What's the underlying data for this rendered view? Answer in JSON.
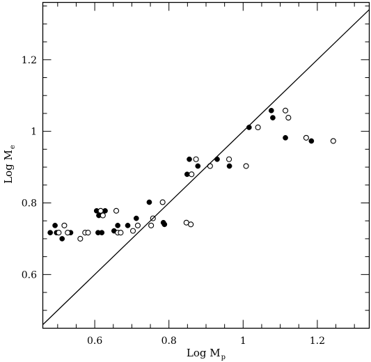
{
  "chart_data": {
    "type": "scatter",
    "title": "",
    "xlabel": "Log M",
    "xlabel_sub": "p",
    "ylabel": "Log M",
    "ylabel_sub": "e",
    "xlim": [
      0.46,
      1.34
    ],
    "ylim": [
      0.45,
      1.36
    ],
    "x_ticks": [
      0.6,
      0.8,
      1,
      1.2
    ],
    "x_tick_labels": [
      "0.6",
      "0.8",
      "1",
      "1.2"
    ],
    "y_ticks": [
      0.6,
      0.8,
      1,
      1.2
    ],
    "y_tick_labels": [
      "0.6",
      "0.8",
      "1",
      "1.2"
    ],
    "grid": false,
    "legend": "none",
    "reference_line": "y = x",
    "series": [
      {
        "marker": "filled-circle",
        "points": [
          [
            0.493,
            0.737
          ],
          [
            0.48,
            0.717
          ],
          [
            0.497,
            0.717
          ],
          [
            0.512,
            0.7
          ],
          [
            0.535,
            0.717
          ],
          [
            0.605,
            0.778
          ],
          [
            0.611,
            0.765
          ],
          [
            0.609,
            0.717
          ],
          [
            0.619,
            0.717
          ],
          [
            0.628,
            0.778
          ],
          [
            0.652,
            0.722
          ],
          [
            0.662,
            0.737
          ],
          [
            0.689,
            0.737
          ],
          [
            0.712,
            0.757
          ],
          [
            0.747,
            0.802
          ],
          [
            0.785,
            0.745
          ],
          [
            0.788,
            0.74
          ],
          [
            0.849,
            0.88
          ],
          [
            0.855,
            0.922
          ],
          [
            0.878,
            0.903
          ],
          [
            0.93,
            0.922
          ],
          [
            0.963,
            0.903
          ],
          [
            1.016,
            1.011
          ],
          [
            1.076,
            1.058
          ],
          [
            1.08,
            1.038
          ],
          [
            1.114,
            0.982
          ],
          [
            1.184,
            0.973
          ]
        ]
      },
      {
        "marker": "open-circle",
        "points": [
          [
            0.503,
            0.717
          ],
          [
            0.518,
            0.737
          ],
          [
            0.527,
            0.717
          ],
          [
            0.561,
            0.7
          ],
          [
            0.574,
            0.717
          ],
          [
            0.582,
            0.717
          ],
          [
            0.616,
            0.778
          ],
          [
            0.622,
            0.765
          ],
          [
            0.658,
            0.778
          ],
          [
            0.662,
            0.717
          ],
          [
            0.67,
            0.717
          ],
          [
            0.703,
            0.722
          ],
          [
            0.716,
            0.737
          ],
          [
            0.752,
            0.737
          ],
          [
            0.757,
            0.757
          ],
          [
            0.783,
            0.802
          ],
          [
            0.847,
            0.745
          ],
          [
            0.859,
            0.74
          ],
          [
            0.861,
            0.88
          ],
          [
            0.873,
            0.922
          ],
          [
            0.911,
            0.903
          ],
          [
            0.962,
            0.922
          ],
          [
            1.008,
            0.903
          ],
          [
            1.04,
            1.011
          ],
          [
            1.114,
            1.058
          ],
          [
            1.122,
            1.038
          ],
          [
            1.17,
            0.982
          ],
          [
            1.243,
            0.973
          ]
        ]
      }
    ]
  }
}
